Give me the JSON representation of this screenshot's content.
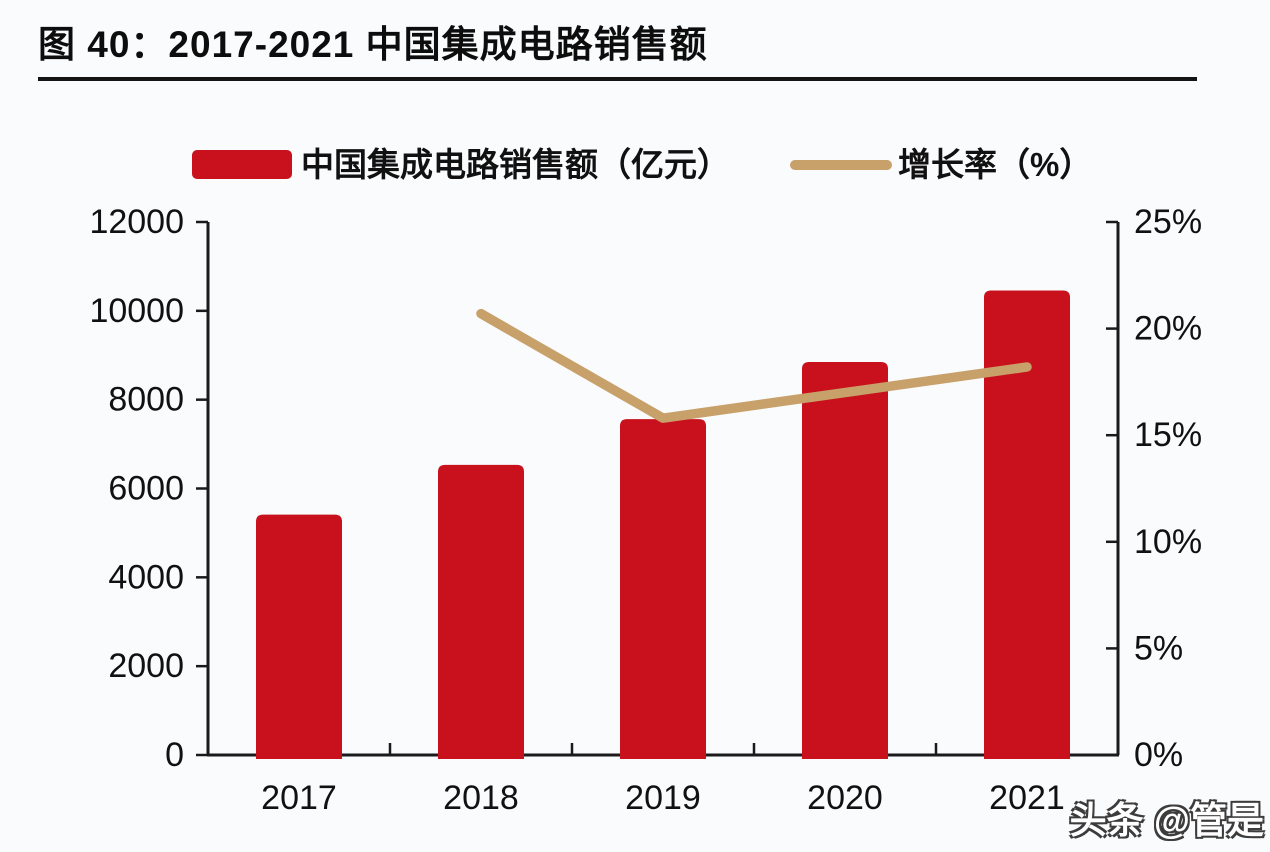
{
  "page": {
    "background": "#f9fbfd"
  },
  "figure": {
    "title": "图 40：2017-2021 中国集成电路销售额",
    "watermark": "头条 @管是"
  },
  "legend": {
    "bar": {
      "label": "中国集成电路销售额（亿元）",
      "color": "#c8111c"
    },
    "line": {
      "label": "增长率（%）",
      "color": "#c8a06a"
    }
  },
  "chart_data": {
    "type": "bar",
    "title": "2017-2021 中国集成电路销售额",
    "categories": [
      "2017",
      "2018",
      "2019",
      "2020",
      "2021"
    ],
    "series": [
      {
        "name": "中国集成电路销售额（亿元）",
        "type": "bar",
        "axis": "left",
        "color": "#c8111c",
        "values": [
          5411,
          6532,
          7562,
          8848,
          10458
        ]
      },
      {
        "name": "增长率（%）",
        "type": "line",
        "axis": "right",
        "color": "#c8a06a",
        "values": [
          null,
          20.7,
          15.8,
          17,
          18.2
        ]
      }
    ],
    "left_axis": {
      "min": 0,
      "max": 12000,
      "step": 2000,
      "ticks": [
        "0",
        "2000",
        "4000",
        "6000",
        "8000",
        "10000",
        "12000"
      ]
    },
    "right_axis": {
      "min": 0,
      "max": 25,
      "step": 5,
      "ticks": [
        "0%",
        "5%",
        "10%",
        "15%",
        "20%",
        "25%"
      ]
    },
    "grid": false,
    "legend_position": "top",
    "axis_color": "#1a1a1a"
  }
}
